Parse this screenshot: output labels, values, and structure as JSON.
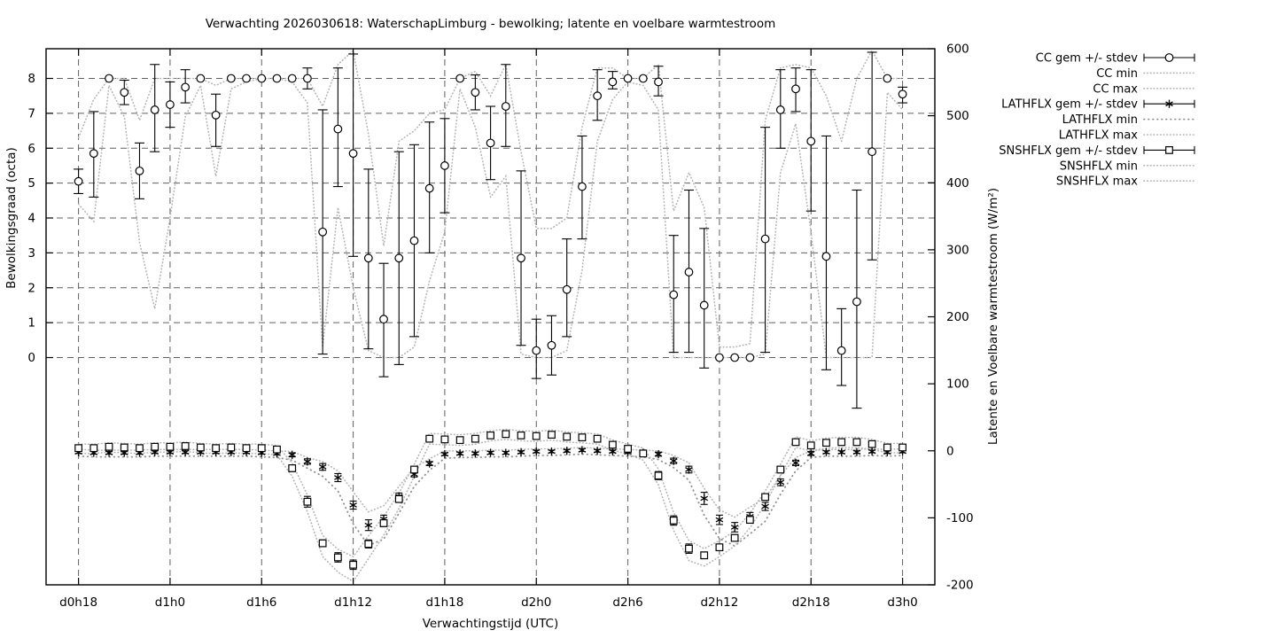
{
  "page": {
    "background": "#ffffff"
  },
  "chart_data": {
    "type": "line",
    "title": "Verwachting 2026030618: WaterschapLimburg - bewolking; latente en voelbare warmtestroom",
    "xlabel": "Verwachtingstijd (UTC)",
    "ylabel_left": "Bewolkingsgraad (octa)",
    "ylabel_right": "Latente en Voelbare warmtestroom (W/m²)",
    "grid": true,
    "legend_position": "outside-right",
    "x_tick_hours": [
      18,
      24,
      30,
      36,
      42,
      48,
      54,
      60,
      66,
      72
    ],
    "x_tick_labels": [
      "d0h18",
      "d1h0",
      "d1h6",
      "d1h12",
      "d1h18",
      "d2h0",
      "d2h6",
      "d2h12",
      "d2h18",
      "d3h0"
    ],
    "xlim": [
      15.875,
      74.115
    ],
    "ylim_left": [
      -6.514,
      8.851
    ],
    "ylim_right": [
      -200,
      600
    ],
    "y_ticks_left": [
      0,
      1,
      2,
      3,
      4,
      5,
      6,
      7,
      8
    ],
    "y_ticks_right": [
      -200,
      -100,
      0,
      100,
      200,
      300,
      400,
      500,
      600
    ],
    "hour_start": 18,
    "colors": {
      "marker": "#000000",
      "grid": "#606060",
      "border": "#000000",
      "dots_light": "#b5b5b5",
      "dots_dark": "#8f8f8f"
    },
    "series": {
      "cc_mean": {
        "axis": "left",
        "values": [
          5.05,
          5.85,
          8,
          7.6,
          5.35,
          7.1,
          7.25,
          7.75,
          8,
          6.95,
          8,
          8,
          8,
          8,
          8,
          8,
          3.6,
          6.55,
          5.85,
          2.85,
          1.1,
          2.85,
          3.35,
          4.85,
          5.5,
          8,
          7.6,
          6.15,
          7.2,
          2.85,
          0.2,
          0.35,
          1.95,
          4.9,
          7.5,
          7.9,
          8,
          8,
          7.9,
          1.8,
          2.45,
          1.5,
          0,
          0,
          0,
          3.4,
          7.1,
          7.7,
          6.2,
          2.9,
          0.2,
          1.6,
          5.9,
          8,
          7.55
        ],
        "err_lo": [
          4.7,
          4.6,
          8,
          7.25,
          4.55,
          5.9,
          6.6,
          7.3,
          8,
          6.05,
          8,
          8,
          8,
          8,
          8,
          7.7,
          0.1,
          4.9,
          2.9,
          0.25,
          -0.55,
          -0.2,
          0.6,
          3.0,
          4.15,
          8,
          7.1,
          5.1,
          6.05,
          0.35,
          -0.6,
          -0.5,
          0.6,
          3.4,
          6.8,
          7.7,
          8,
          8,
          7.5,
          0.15,
          0.15,
          -0.3,
          0,
          0,
          0,
          0.15,
          6.0,
          7.05,
          4.2,
          -0.35,
          -0.8,
          -1.45,
          2.8,
          8,
          7.3
        ],
        "err_hi": [
          5.4,
          7.05,
          8,
          7.95,
          6.15,
          8.4,
          7.9,
          8.25,
          8,
          7.55,
          8,
          8,
          8,
          8,
          8,
          8.3,
          7.1,
          8.3,
          8.7,
          5.4,
          2.7,
          5.9,
          6.1,
          6.75,
          6.85,
          8,
          8.1,
          7.2,
          8.4,
          5.35,
          1.1,
          1.2,
          3.4,
          6.35,
          8.25,
          8.2,
          8,
          8,
          8.35,
          3.5,
          4.8,
          3.7,
          0,
          0,
          0,
          6.6,
          8.25,
          8.3,
          8.25,
          6.35,
          1.4,
          4.8,
          8.75,
          8,
          7.75
        ]
      },
      "cc_min": {
        "axis": "left",
        "values": [
          4.4,
          3.9,
          7.8,
          6.9,
          3.3,
          1.4,
          4.0,
          6.9,
          7.8,
          5.2,
          7.7,
          7.9,
          8,
          8,
          7.9,
          7.3,
          0.3,
          4.3,
          2.0,
          0.2,
          0,
          0,
          0.3,
          2.2,
          3.6,
          7.7,
          6.6,
          4.6,
          5.2,
          0.1,
          0,
          0,
          0.2,
          2.5,
          6.2,
          7.4,
          7.9,
          7.8,
          7.1,
          0,
          0,
          0,
          0,
          0,
          0,
          0.1,
          5.3,
          6.7,
          3.6,
          0,
          0,
          0,
          0,
          7.6,
          7.1
        ]
      },
      "cc_max": {
        "axis": "left",
        "values": [
          6.3,
          7.4,
          8,
          8,
          6.8,
          8,
          8,
          8,
          8,
          7.8,
          8,
          8,
          8,
          8,
          8,
          8,
          7.2,
          8.4,
          8.8,
          6.4,
          3.2,
          6.2,
          6.5,
          7.0,
          7.1,
          8,
          8.2,
          7.5,
          8.4,
          5.9,
          3.7,
          3.7,
          4.0,
          6.6,
          8.3,
          8.3,
          8,
          8,
          8.4,
          4.2,
          5.3,
          4.3,
          0.3,
          0.3,
          0.4,
          6.8,
          8.3,
          8.4,
          8.3,
          7.5,
          6.2,
          8,
          8.8,
          8,
          8
        ]
      },
      "lathflx_mean": {
        "axis": "right",
        "values": [
          -2,
          -3,
          -3,
          -3,
          -3,
          -2,
          -2,
          -2,
          -2,
          -2,
          -2,
          -2,
          -3,
          -4,
          -6,
          -16,
          -24,
          -40,
          -81,
          -111,
          -102,
          -68,
          -35,
          -19,
          -5,
          -4,
          -4,
          -3,
          -3,
          -2,
          -1,
          -1,
          0,
          1,
          0,
          -1,
          -2,
          -3,
          -5,
          -15,
          -28,
          -71,
          -103,
          -114,
          -98,
          -83,
          -47,
          -18,
          -4,
          -2,
          -2,
          -2,
          -1,
          -2,
          -1
        ],
        "stdev": [
          2,
          2,
          2,
          2,
          2,
          2,
          2,
          2,
          2,
          2,
          2,
          2,
          2,
          2,
          3,
          4,
          5,
          6,
          6,
          8,
          6,
          5,
          4,
          3,
          2,
          2,
          2,
          2,
          2,
          2,
          2,
          2,
          2,
          2,
          2,
          2,
          2,
          2,
          3,
          4,
          5,
          9,
          7,
          7,
          6,
          6,
          5,
          4,
          3,
          2,
          2,
          2,
          2,
          2,
          2
        ]
      },
      "lathflx_min": {
        "axis": "right",
        "values": [
          -8,
          -9,
          -9,
          -9,
          -9,
          -8,
          -8,
          -8,
          -8,
          -8,
          -8,
          -8,
          -9,
          -10,
          -14,
          -26,
          -38,
          -60,
          -109,
          -141,
          -132,
          -93,
          -53,
          -29,
          -11,
          -10,
          -10,
          -9,
          -9,
          -8,
          -7,
          -7,
          -6,
          -5,
          -6,
          -7,
          -8,
          -9,
          -13,
          -25,
          -44,
          -96,
          -131,
          -142,
          -124,
          -105,
          -65,
          -30,
          -10,
          -8,
          -8,
          -8,
          -7,
          -8,
          -7
        ]
      },
      "lathflx_max": {
        "axis": "right",
        "values": [
          2,
          1,
          1,
          1,
          1,
          2,
          2,
          2,
          2,
          2,
          2,
          2,
          1,
          0,
          -1,
          -10,
          -16,
          -30,
          -61,
          -91,
          -82,
          -53,
          -25,
          -12,
          0,
          0,
          0,
          1,
          1,
          2,
          3,
          3,
          4,
          5,
          4,
          3,
          2,
          1,
          0,
          -7,
          -18,
          -56,
          -88,
          -99,
          -84,
          -70,
          -37,
          -10,
          0,
          2,
          2,
          2,
          3,
          2,
          3
        ]
      },
      "snshflx_mean": {
        "axis": "right",
        "values": [
          4,
          4,
          6,
          5,
          4,
          6,
          6,
          7,
          5,
          4,
          5,
          4,
          4,
          2,
          -26,
          -76,
          -138,
          -159,
          -170,
          -139,
          -108,
          -72,
          -28,
          18,
          17,
          16,
          18,
          23,
          25,
          23,
          22,
          24,
          21,
          20,
          18,
          9,
          3,
          -4,
          -37,
          -104,
          -146,
          -156,
          -144,
          -130,
          -103,
          -69,
          -28,
          13,
          8,
          12,
          13,
          13,
          10,
          5,
          5
        ],
        "stdev": [
          2,
          2,
          2,
          2,
          2,
          2,
          2,
          2,
          2,
          2,
          2,
          2,
          2,
          2,
          5,
          8,
          5,
          7,
          7,
          6,
          5,
          5,
          4,
          2,
          2,
          2,
          2,
          2,
          2,
          2,
          2,
          2,
          2,
          2,
          2,
          2,
          2,
          3,
          6,
          7,
          7,
          5,
          4,
          3,
          3,
          4,
          3,
          2,
          2,
          2,
          2,
          2,
          2,
          2,
          2
        ]
      },
      "snshflx_min": {
        "axis": "right",
        "values": [
          -4,
          -4,
          -2,
          -3,
          -4,
          -2,
          -2,
          -1,
          -3,
          -4,
          -3,
          -4,
          -4,
          -6,
          -38,
          -91,
          -158,
          -181,
          -195,
          -161,
          -126,
          -86,
          -38,
          10,
          9,
          8,
          10,
          15,
          17,
          15,
          14,
          16,
          13,
          12,
          10,
          1,
          -5,
          -14,
          -51,
          -119,
          -164,
          -172,
          -158,
          -142,
          -115,
          -79,
          -37,
          5,
          0,
          4,
          5,
          5,
          2,
          -3,
          -3
        ]
      },
      "snshflx_max": {
        "axis": "right",
        "values": [
          10,
          10,
          12,
          11,
          10,
          12,
          12,
          13,
          11,
          10,
          11,
          10,
          10,
          8,
          -18,
          -66,
          -126,
          -147,
          -158,
          -127,
          -98,
          -63,
          -20,
          26,
          25,
          24,
          26,
          30,
          32,
          30,
          29,
          31,
          28,
          27,
          25,
          16,
          10,
          4,
          -27,
          -92,
          -134,
          -146,
          -134,
          -120,
          -93,
          -60,
          -20,
          21,
          15,
          19,
          20,
          20,
          17,
          11,
          11
        ]
      }
    },
    "legend": [
      {
        "label": "CC gem +/- stdev",
        "sample": "errbar",
        "marker": "circle"
      },
      {
        "label": "CC min",
        "sample": "dots",
        "style": "light"
      },
      {
        "label": "CC max",
        "sample": "dots",
        "style": "light"
      },
      {
        "label": "LATHFLX gem +/- stdev",
        "sample": "errbar",
        "marker": "asterisk"
      },
      {
        "label": "LATHFLX min",
        "sample": "dots",
        "style": "dark"
      },
      {
        "label": "LATHFLX max",
        "sample": "dots",
        "style": "light"
      },
      {
        "label": "SNSHFLX gem +/- stdev",
        "sample": "errbar",
        "marker": "square"
      },
      {
        "label": "SNSHFLX min",
        "sample": "dots",
        "style": "light"
      },
      {
        "label": "SNSHFLX max",
        "sample": "dots",
        "style": "light"
      }
    ]
  }
}
